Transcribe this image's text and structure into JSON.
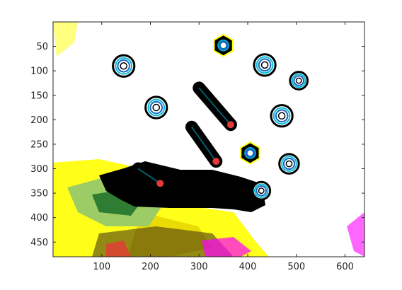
{
  "figure": {
    "colors": {
      "background": "#ffffff",
      "object_dark": "#000000",
      "ring_blue": "#1565c0",
      "cyan": "#00bcd4",
      "red": "#e53935",
      "yellow": "#ffff00",
      "green": "#2e7d32",
      "lime": "#9ccc65",
      "magenta": "#ff00ff"
    },
    "x_axis": {
      "range": [
        0,
        640
      ],
      "ticks": [
        100,
        200,
        300,
        400,
        500,
        600
      ],
      "tick_labels": [
        "100",
        "200",
        "300",
        "400",
        "500",
        "600"
      ]
    },
    "y_axis": {
      "range": [
        0,
        480
      ],
      "direction": "reversed",
      "ticks": [
        50,
        100,
        150,
        200,
        250,
        300,
        350,
        400,
        450
      ],
      "tick_labels": [
        "50",
        "100",
        "150",
        "200",
        "250",
        "300",
        "350",
        "400",
        "450"
      ]
    },
    "image_content": {
      "washers": [
        {
          "x": 145,
          "y": 90,
          "r": 22
        },
        {
          "x": 212,
          "y": 175,
          "r": 22
        },
        {
          "x": 435,
          "y": 88,
          "r": 22
        },
        {
          "x": 505,
          "y": 120,
          "r": 18
        },
        {
          "x": 470,
          "y": 192,
          "r": 22
        },
        {
          "x": 485,
          "y": 290,
          "r": 20
        },
        {
          "x": 428,
          "y": 345,
          "r": 18
        }
      ],
      "nuts": [
        {
          "x": 350,
          "y": 48,
          "r": 22
        },
        {
          "x": 405,
          "y": 268,
          "r": 22
        }
      ],
      "bolts": [
        {
          "x1": 300,
          "y1": 135,
          "x2": 365,
          "y2": 210
        },
        {
          "x1": 285,
          "y1": 215,
          "x2": 335,
          "y2": 285
        },
        {
          "x1": 175,
          "y1": 300,
          "x2": 220,
          "y2": 330
        }
      ]
    }
  }
}
